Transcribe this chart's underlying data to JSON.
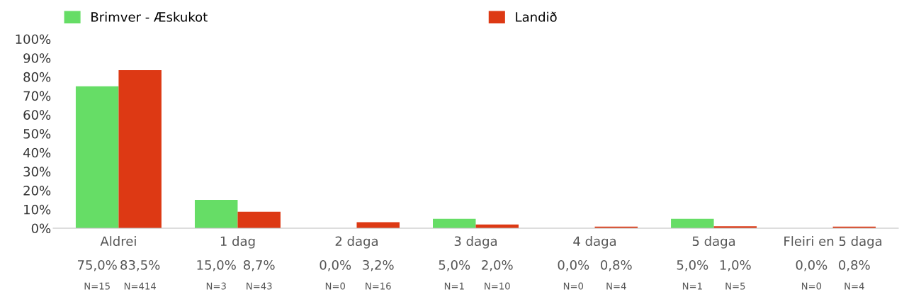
{
  "chart_data": {
    "type": "bar",
    "categories": [
      "Aldrei",
      "1 dag",
      "2 daga",
      "3 daga",
      "4 daga",
      "5 daga",
      "Fleiri en 5 daga"
    ],
    "series": [
      {
        "name": "Brimver - Æskukot",
        "color": "#66dd66",
        "values": [
          75.0,
          15.0,
          0.0,
          5.0,
          0.0,
          5.0,
          0.0
        ],
        "value_labels": [
          "75,0%\nN=15",
          "15,0%\nN=3",
          "0,0%\nN=0",
          "5,0%\nN=1",
          "0,0%\nN=0",
          "5,0%\nN=1",
          "0,0%\nN=0"
        ]
      },
      {
        "name": "Landið",
        "color": "#dd3914",
        "values": [
          83.5,
          8.7,
          3.2,
          2.0,
          0.8,
          1.0,
          0.8
        ],
        "value_labels": [
          "83,5%\nN=414",
          "8,7%\nN=43",
          "3,2%\nN=16",
          "2,0%\nN=10",
          "0,8%\nN=4",
          "1,0%\nN=5",
          "0,8%\nN=4"
        ]
      }
    ],
    "ylim": [
      0,
      100
    ],
    "yticks": [
      {
        "value": 0,
        "label": "0%"
      },
      {
        "value": 10,
        "label": "10%"
      },
      {
        "value": 20,
        "label": "20%"
      },
      {
        "value": 30,
        "label": "30%"
      },
      {
        "value": 40,
        "label": "40%"
      },
      {
        "value": 50,
        "label": "50%"
      },
      {
        "value": 60,
        "label": "60%"
      },
      {
        "value": 70,
        "label": "70%"
      },
      {
        "value": 80,
        "label": "80%"
      },
      {
        "value": 90,
        "label": "90%"
      },
      {
        "value": 100,
        "label": "100%"
      }
    ],
    "legend": "top",
    "grid": false
  }
}
